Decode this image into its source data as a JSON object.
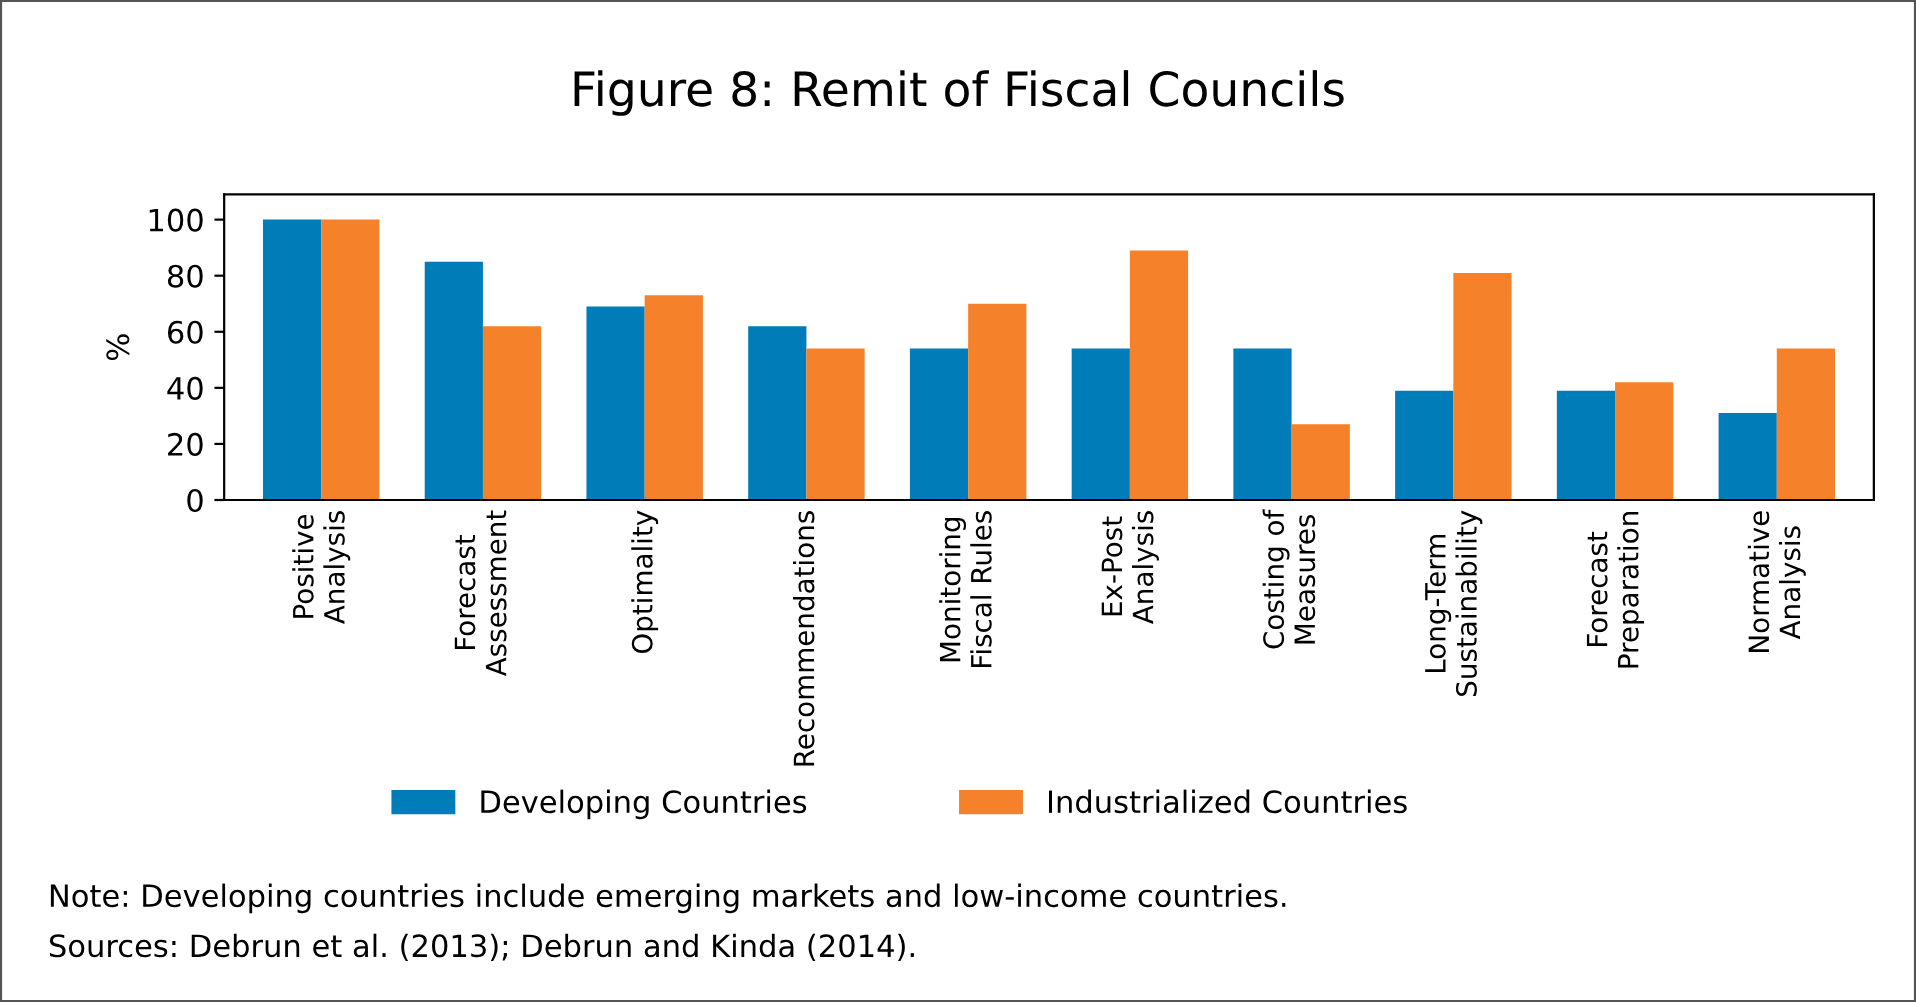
{
  "chart_data": {
    "type": "bar",
    "title": "Figure 8: Remit of Fiscal Councils",
    "ylabel": "%",
    "categories": [
      "Positive\nAnalysis",
      "Forecast\nAssessment",
      "Optimality",
      "Recommendations",
      "Monitoring\nFiscal Rules",
      "Ex-Post\nAnalysis",
      "Costing of\nMeasures",
      "Long-Term\nSustainability",
      "Forecast\nPreparation",
      "Normative\nAnalysis"
    ],
    "series": [
      {
        "name": "Developing Countries",
        "color": "#007db8",
        "values": [
          100,
          85,
          69,
          62,
          54,
          54,
          54,
          39,
          39,
          31
        ]
      },
      {
        "name": "Industrialized Countries",
        "color": "#f5822a",
        "values": [
          100,
          62,
          73,
          54,
          70,
          89,
          27,
          81,
          42,
          54
        ]
      }
    ],
    "ylim": [
      0,
      109
    ],
    "yticks": [
      0,
      20,
      40,
      60,
      80,
      100
    ],
    "grid": false,
    "legend": "bottom",
    "annotations": [
      "Note: Developing countries include emerging markets and low-income countries.",
      "Sources: Debrun et al. (2013); Debrun and Kinda (2014)."
    ]
  }
}
